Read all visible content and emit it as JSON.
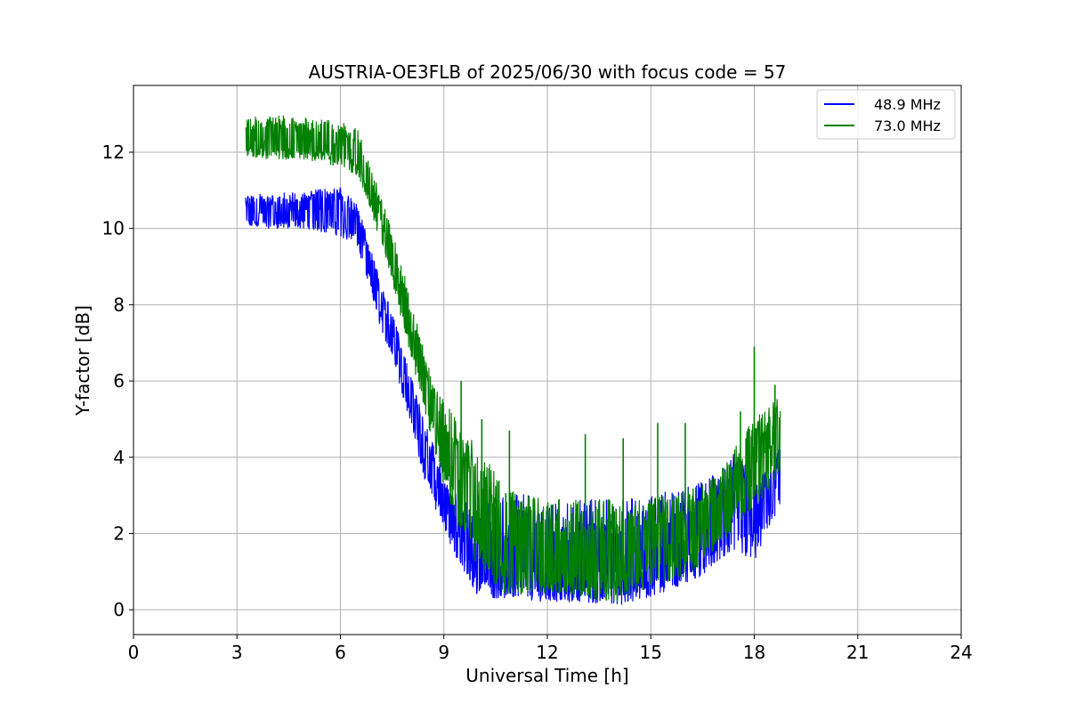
{
  "chart_data": {
    "type": "line",
    "title": "AUSTRIA-OE3FLB of 2025/06/30 with focus code = 57",
    "xlabel": "Universal Time [h]",
    "ylabel": "Y-factor [dB]",
    "xlim": [
      0,
      24
    ],
    "ylim": [
      -0.65,
      13.75
    ],
    "xticks": [
      "0",
      "3",
      "6",
      "9",
      "12",
      "15",
      "18",
      "21",
      "24"
    ],
    "yticks": [
      "0",
      "2",
      "4",
      "6",
      "8",
      "10",
      "12"
    ],
    "grid": true,
    "legend_position": "top-right",
    "series": [
      {
        "name": "48.9 MHz",
        "color": "#0000ff",
        "x": [
          3.25,
          4.0,
          5.0,
          6.0,
          6.5,
          7.0,
          7.5,
          8.0,
          8.5,
          9.0,
          9.5,
          10.0,
          10.5,
          11.0,
          12.0,
          13.0,
          14.0,
          15.0,
          16.0,
          16.5,
          17.0,
          17.5,
          18.0,
          18.5,
          18.75
        ],
        "y": [
          10.4,
          10.4,
          10.5,
          10.5,
          10.1,
          8.6,
          7.3,
          5.8,
          4.1,
          2.7,
          1.8,
          1.7,
          1.2,
          1.0,
          1.0,
          1.0,
          1.0,
          1.1,
          1.4,
          1.6,
          2.0,
          2.4,
          2.7,
          3.0,
          3.4
        ],
        "y_low": [
          10.0,
          10.0,
          10.0,
          9.8,
          9.5,
          7.8,
          6.6,
          5.0,
          3.2,
          2.1,
          1.1,
          0.3,
          0.3,
          0.3,
          0.2,
          0.2,
          0.1,
          0.3,
          0.7,
          0.9,
          1.3,
          1.5,
          1.2,
          2.1,
          2.3
        ],
        "y_high": [
          10.9,
          10.9,
          11.0,
          11.1,
          10.6,
          9.1,
          7.8,
          6.3,
          4.8,
          3.6,
          2.8,
          3.0,
          2.9,
          3.1,
          2.9,
          2.9,
          2.9,
          3.0,
          3.2,
          3.4,
          3.6,
          4.2,
          3.4,
          3.8,
          4.3
        ]
      },
      {
        "name": "73.0 MHz",
        "color": "#008000",
        "x": [
          3.25,
          4.0,
          5.0,
          6.0,
          6.5,
          7.0,
          7.5,
          8.0,
          8.5,
          9.0,
          9.5,
          10.0,
          10.5,
          11.0,
          12.0,
          13.0,
          14.0,
          15.0,
          16.0,
          16.5,
          17.0,
          17.5,
          18.0,
          18.5,
          18.75
        ],
        "y": [
          12.3,
          12.3,
          12.3,
          12.2,
          12.0,
          10.7,
          9.3,
          7.5,
          5.8,
          4.3,
          3.3,
          2.5,
          2.0,
          1.7,
          1.5,
          1.4,
          1.4,
          1.6,
          1.8,
          2.0,
          2.5,
          3.2,
          3.8,
          4.3,
          4.6
        ],
        "y_low": [
          11.9,
          11.8,
          11.8,
          11.6,
          11.4,
          10.1,
          8.6,
          6.8,
          5.0,
          3.2,
          2.0,
          1.1,
          0.5,
          0.4,
          0.4,
          0.3,
          0.2,
          0.6,
          0.9,
          1.2,
          1.7,
          2.2,
          2.7,
          3.2,
          3.6
        ],
        "y_high": [
          12.9,
          13.0,
          12.9,
          12.8,
          12.6,
          11.3,
          10.0,
          8.3,
          6.5,
          5.5,
          4.8,
          4.3,
          3.6,
          3.1,
          2.9,
          2.9,
          2.9,
          2.9,
          3.1,
          3.3,
          3.6,
          4.4,
          5.0,
          5.4,
          5.6
        ],
        "spikes": [
          {
            "x": 9.5,
            "y": 6.0
          },
          {
            "x": 10.1,
            "y": 5.0
          },
          {
            "x": 10.9,
            "y": 4.7
          },
          {
            "x": 13.1,
            "y": 4.6
          },
          {
            "x": 14.2,
            "y": 4.5
          },
          {
            "x": 15.2,
            "y": 4.9
          },
          {
            "x": 16.0,
            "y": 4.9
          },
          {
            "x": 17.6,
            "y": 5.2
          },
          {
            "x": 18.0,
            "y": 6.9
          },
          {
            "x": 18.6,
            "y": 5.9
          }
        ]
      }
    ]
  }
}
